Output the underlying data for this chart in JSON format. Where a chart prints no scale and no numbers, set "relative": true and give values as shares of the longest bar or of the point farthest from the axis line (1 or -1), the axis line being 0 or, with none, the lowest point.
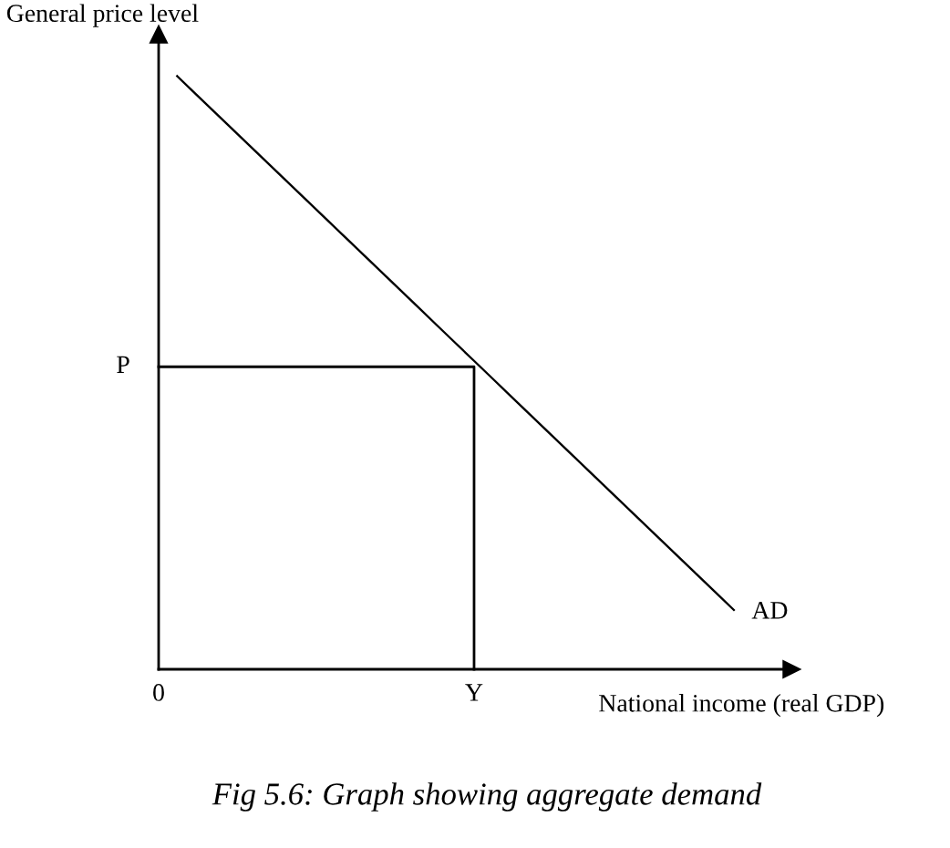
{
  "chart_data": {
    "type": "line",
    "relative": true,
    "xlabel": "National income (real GDP)",
    "ylabel": "General price level",
    "tick_labels": "x",
    "categories": [
      "0",
      null,
      null,
      null,
      null,
      null,
      null,
      null,
      null,
      null,
      null,
      null,
      null,
      null,
      null,
      null,
      null,
      "Y",
      null,
      null,
      null,
      null,
      null,
      null,
      null,
      null,
      null,
      null,
      null,
      null,
      null,
      null
    ],
    "series": [
      {
        "name": "AD",
        "color": "#000000",
        "values": [
          null,
          1.0,
          0.97,
          0.94,
          0.91,
          0.88,
          0.85,
          0.82,
          0.79,
          0.76,
          0.73,
          0.7,
          0.67,
          0.64,
          0.61,
          0.58,
          0.55,
          0.52,
          0.49,
          0.46,
          0.43,
          0.4,
          0.37,
          0.34,
          0.31,
          0.28,
          0.25,
          0.22,
          0.19,
          0.16,
          0.13,
          0.1
        ]
      },
      {
        "name": "P",
        "type": "step",
        "color": "#000000",
        "values": [
          0.51,
          0.51,
          0.51,
          0.51,
          0.51,
          0.51,
          0.51,
          0.51,
          0.51,
          0.51,
          0.51,
          0.51,
          0.51,
          0.51,
          0.51,
          0.51,
          0.51,
          0,
          null,
          null,
          null,
          null,
          null,
          null,
          null,
          null,
          null,
          null,
          null,
          null,
          null,
          null
        ]
      }
    ],
    "annotations": [
      "Fig 5.6: Graph showing aggregate demand"
    ]
  }
}
